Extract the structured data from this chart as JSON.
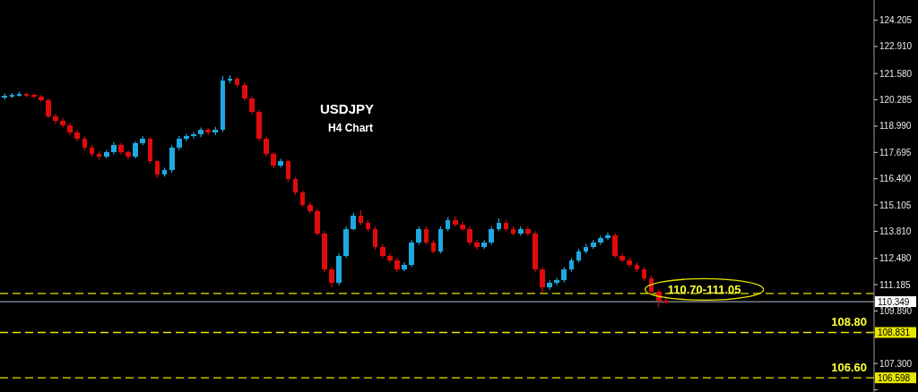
{
  "chart_data": {
    "type": "candlestick",
    "title": "USDJPY",
    "subtitle": "H4 Chart",
    "categories": [
      null,
      null,
      null,
      null,
      null,
      null,
      null,
      null,
      null,
      null,
      null,
      null,
      null,
      null,
      null,
      null,
      null,
      null,
      null,
      null,
      null,
      null,
      null,
      null,
      null,
      null,
      null,
      null,
      null,
      null,
      null,
      null,
      null,
      null,
      null,
      null,
      null,
      null,
      null,
      null,
      null,
      null,
      null,
      null,
      null,
      null,
      null,
      null,
      null,
      null,
      null,
      null,
      null,
      null,
      null,
      null,
      null,
      null,
      null,
      null,
      null,
      null,
      null,
      null,
      null,
      null,
      null,
      null,
      null,
      null,
      null,
      null,
      null,
      null,
      null,
      null,
      null,
      null,
      null,
      null,
      null,
      null,
      null,
      null,
      null,
      null,
      null,
      null,
      null,
      null,
      null,
      null,
      null,
      null,
      null,
      null,
      null,
      null,
      null,
      null,
      null,
      null,
      null,
      null,
      null,
      null,
      null,
      null,
      null,
      null,
      null,
      null,
      null,
      null,
      null,
      null,
      null,
      null,
      null,
      null
    ],
    "ohlc": [
      [
        120.4,
        120.6,
        120.3,
        120.49
      ],
      [
        120.49,
        120.62,
        120.38,
        120.52
      ],
      [
        120.52,
        120.68,
        120.44,
        120.55
      ],
      [
        120.55,
        120.64,
        120.4,
        120.49
      ],
      [
        120.49,
        120.6,
        120.36,
        120.45
      ],
      [
        120.45,
        120.52,
        120.18,
        120.27
      ],
      [
        120.27,
        120.35,
        119.38,
        119.47
      ],
      [
        119.47,
        119.6,
        119.1,
        119.25
      ],
      [
        119.25,
        119.4,
        118.92,
        119.03
      ],
      [
        119.03,
        119.15,
        118.55,
        118.67
      ],
      [
        118.67,
        118.8,
        118.25,
        118.36
      ],
      [
        118.36,
        118.48,
        117.8,
        117.92
      ],
      [
        117.92,
        118.05,
        117.5,
        117.61
      ],
      [
        117.61,
        117.75,
        117.35,
        117.48
      ],
      [
        117.48,
        117.82,
        117.4,
        117.7
      ],
      [
        117.7,
        118.2,
        117.6,
        118.05
      ],
      [
        118.05,
        118.15,
        117.6,
        117.7
      ],
      [
        117.7,
        117.8,
        117.35,
        117.48
      ],
      [
        117.48,
        118.25,
        117.4,
        118.14
      ],
      [
        118.14,
        118.5,
        118.05,
        118.36
      ],
      [
        118.36,
        118.45,
        117.15,
        117.26
      ],
      [
        117.26,
        117.35,
        116.45,
        116.59
      ],
      [
        116.59,
        116.95,
        116.5,
        116.81
      ],
      [
        116.81,
        118.05,
        116.7,
        117.92
      ],
      [
        117.92,
        118.5,
        117.8,
        118.36
      ],
      [
        118.36,
        118.62,
        118.25,
        118.49
      ],
      [
        118.49,
        118.7,
        118.38,
        118.58
      ],
      [
        118.58,
        118.92,
        118.45,
        118.8
      ],
      [
        118.8,
        118.9,
        118.55,
        118.67
      ],
      [
        118.67,
        118.95,
        118.55,
        118.8
      ],
      [
        118.8,
        121.46,
        118.7,
        121.24
      ],
      [
        121.24,
        121.5,
        121.1,
        121.33
      ],
      [
        121.33,
        121.42,
        120.9,
        121.02
      ],
      [
        121.02,
        121.12,
        120.25,
        120.35
      ],
      [
        120.35,
        120.45,
        119.58,
        119.69
      ],
      [
        119.69,
        119.8,
        118.25,
        118.36
      ],
      [
        118.36,
        118.48,
        117.5,
        117.61
      ],
      [
        117.61,
        117.72,
        116.92,
        117.03
      ],
      [
        117.03,
        117.38,
        116.95,
        117.26
      ],
      [
        117.26,
        117.35,
        116.25,
        116.37
      ],
      [
        116.37,
        116.48,
        115.6,
        115.71
      ],
      [
        115.71,
        115.82,
        115.02,
        115.13
      ],
      [
        115.13,
        115.25,
        114.7,
        114.82
      ],
      [
        114.82,
        114.92,
        113.6,
        113.71
      ],
      [
        113.71,
        113.82,
        111.82,
        111.94
      ],
      [
        111.94,
        112.05,
        111.06,
        111.28
      ],
      [
        111.28,
        112.72,
        111.15,
        112.61
      ],
      [
        112.61,
        114.05,
        112.5,
        113.94
      ],
      [
        113.94,
        114.72,
        113.85,
        114.6
      ],
      [
        114.6,
        114.85,
        114.12,
        114.25
      ],
      [
        114.25,
        114.38,
        113.82,
        113.94
      ],
      [
        113.94,
        114.05,
        112.92,
        113.05
      ],
      [
        113.05,
        113.18,
        112.5,
        112.61
      ],
      [
        112.61,
        112.72,
        112.28,
        112.39
      ],
      [
        112.39,
        112.5,
        111.82,
        111.94
      ],
      [
        111.94,
        112.28,
        111.85,
        112.16
      ],
      [
        112.16,
        113.38,
        112.05,
        113.27
      ],
      [
        113.27,
        114.05,
        113.15,
        113.94
      ],
      [
        113.94,
        114.05,
        113.15,
        113.27
      ],
      [
        113.27,
        113.38,
        112.72,
        112.83
      ],
      [
        112.83,
        114.05,
        112.72,
        113.94
      ],
      [
        113.94,
        114.5,
        113.82,
        114.38
      ],
      [
        114.38,
        114.55,
        114.05,
        114.16
      ],
      [
        114.16,
        114.28,
        113.82,
        113.94
      ],
      [
        113.94,
        114.05,
        113.15,
        113.27
      ],
      [
        113.27,
        113.38,
        112.92,
        113.05
      ],
      [
        113.05,
        113.38,
        112.95,
        113.27
      ],
      [
        113.27,
        114.05,
        113.15,
        113.94
      ],
      [
        113.94,
        114.45,
        113.82,
        114.25
      ],
      [
        114.25,
        114.38,
        113.82,
        113.94
      ],
      [
        113.94,
        114.05,
        113.6,
        113.71
      ],
      [
        113.71,
        114.05,
        113.6,
        113.94
      ],
      [
        113.94,
        114.05,
        113.6,
        113.71
      ],
      [
        113.71,
        113.82,
        111.82,
        111.94
      ],
      [
        111.94,
        112.05,
        110.79,
        111.06
      ],
      [
        111.06,
        111.4,
        110.95,
        111.28
      ],
      [
        111.28,
        111.52,
        111.15,
        111.41
      ],
      [
        111.41,
        112.05,
        111.3,
        111.94
      ],
      [
        111.94,
        112.5,
        111.82,
        112.39
      ],
      [
        112.39,
        112.95,
        112.28,
        112.83
      ],
      [
        112.83,
        113.18,
        112.72,
        113.05
      ],
      [
        113.05,
        113.38,
        112.95,
        113.27
      ],
      [
        113.27,
        113.6,
        113.15,
        113.49
      ],
      [
        113.49,
        113.75,
        113.38,
        113.63
      ],
      [
        113.63,
        113.72,
        112.5,
        112.61
      ],
      [
        112.61,
        112.72,
        112.28,
        112.39
      ],
      [
        112.39,
        112.5,
        112.05,
        112.16
      ],
      [
        112.16,
        112.28,
        111.82,
        111.94
      ],
      [
        111.94,
        112.05,
        111.38,
        111.5
      ],
      [
        111.5,
        111.62,
        110.72,
        110.84
      ],
      [
        110.84,
        110.95,
        110.08,
        110.39
      ],
      [
        110.39,
        110.55,
        110.25,
        110.35
      ],
      null,
      null,
      null,
      null,
      null,
      null,
      null,
      null,
      null,
      null,
      null,
      null,
      null,
      null,
      null,
      null,
      null,
      null,
      null,
      null,
      null,
      null,
      null,
      null,
      null,
      null,
      null,
      null
    ],
    "ylim": [
      105.9,
      125.2
    ],
    "yticks": [
      124.205,
      {
        "value": 122.91,
        "label": "122.910"
      },
      {
        "value": 121.58,
        "label": "121.580"
      },
      120.285,
      {
        "value": 118.99,
        "label": "118.990"
      },
      117.695,
      {
        "value": 116.4,
        "label": "116.400"
      },
      115.105,
      {
        "value": 113.81,
        "label": "113.810"
      },
      {
        "value": 112.48,
        "label": "112.480"
      },
      111.185,
      {
        "value": 109.89,
        "label": "109.890"
      },
      {
        "value": 108.595,
        "label": null
      },
      {
        "value": 107.3,
        "label": "107.300"
      },
      {
        "value": 106.005,
        "label": null
      }
    ],
    "tick_labels": "y",
    "grid": false,
    "ref_lines": [
      {
        "axis": "y",
        "value": 110.75,
        "label": null,
        "color": "#e6e600",
        "line_style": "dashed"
      },
      {
        "axis": "y",
        "value": 110.349,
        "label": "110.349",
        "color": "#8a98a8",
        "line_style": "solid"
      },
      {
        "axis": "y",
        "value": 108.831,
        "label": "108.831",
        "color": "#e6e600",
        "line_style": "dashed"
      },
      {
        "axis": "y",
        "value": 106.598,
        "label": "106.598",
        "color": "#e6e600",
        "line_style": "dashed"
      }
    ],
    "annotations": [
      {
        "text": "110.70-111.05",
        "y": 110.95
      },
      {
        "text": "108.80",
        "y": 108.831
      },
      {
        "text": "106.60",
        "y": 106.598
      }
    ]
  }
}
